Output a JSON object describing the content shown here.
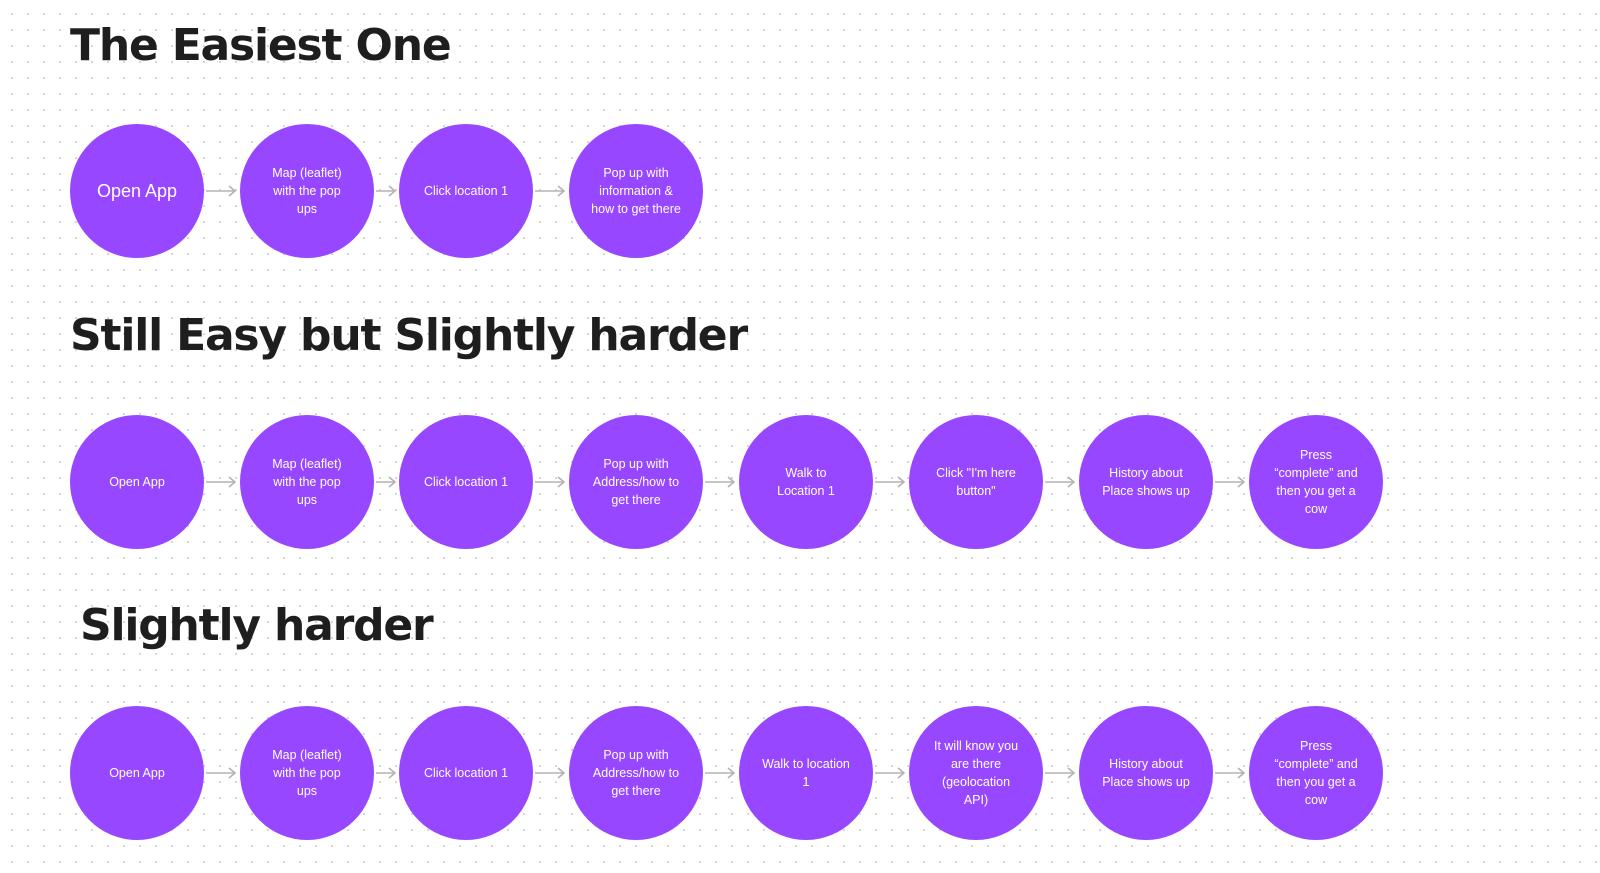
{
  "colors": {
    "node": "#9747ff",
    "node_text": "#ffffff",
    "arrow": "#b3b3b3",
    "title": "#1e1e1e",
    "grid_dot": "#d4d4d4"
  },
  "sections": [
    {
      "title": "The Easiest One",
      "steps": [
        "Open App",
        "Map (leaflet)\nwith the pop\nups",
        "Click location 1",
        "Pop up with\ninformation &\nhow to get there"
      ]
    },
    {
      "title": "Still Easy but Slightly harder",
      "steps": [
        "Open App",
        "Map (leaflet)\nwith the pop\nups",
        "Click location 1",
        "Pop up with\nAddress/how to\nget there",
        "Walk to\nLocation 1",
        "Click \"I'm here\nbutton\"",
        "History about\nPlace shows up",
        "Press\n“complete” and\nthen you get a\ncow"
      ]
    },
    {
      "title": "Slightly harder",
      "steps": [
        "Open App",
        "Map (leaflet)\nwith the pop\nups",
        "Click location 1",
        "Pop up with\nAddress/how to\nget there",
        "Walk to location\n1",
        "It will know you\nare there\n(geolocation\nAPI)",
        "History about\nPlace shows up",
        "Press\n“complete” and\nthen you get a\ncow"
      ]
    }
  ]
}
